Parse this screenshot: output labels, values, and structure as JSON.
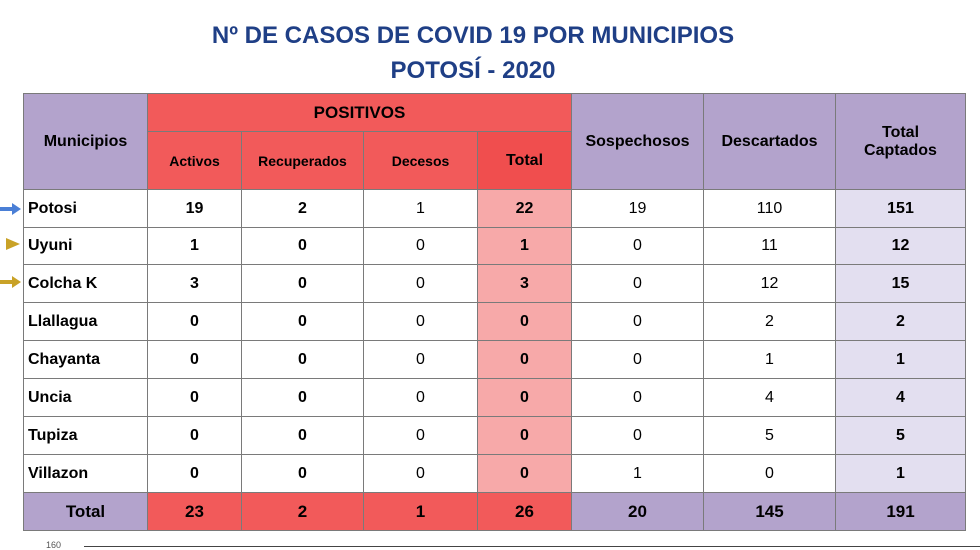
{
  "title": {
    "line1": "Nº DE CASOS  DE  COVID 19  POR MUNICIPIOS",
    "line2": "POTOSÍ - 2020"
  },
  "headers": {
    "municipios": "Municipios",
    "positivos": "POSITIVOS",
    "activos": "Activos",
    "recuperados": "Recuperados",
    "decesos": "Decesos",
    "total": "Total",
    "sospechosos": "Sospechosos",
    "descartados": "Descartados",
    "total_captados": "Total Captados"
  },
  "rows": [
    {
      "municipio": "Potosi",
      "activos": "19",
      "recuperados": "2",
      "decesos": "1",
      "total": "22",
      "sospechosos": "19",
      "descartados": "110",
      "captados": "151"
    },
    {
      "municipio": "Uyuni",
      "activos": "1",
      "recuperados": "0",
      "decesos": "0",
      "total": "1",
      "sospechosos": "0",
      "descartados": "11",
      "captados": "12"
    },
    {
      "municipio": "Colcha K",
      "activos": "3",
      "recuperados": "0",
      "decesos": "0",
      "total": "3",
      "sospechosos": "0",
      "descartados": "12",
      "captados": "15"
    },
    {
      "municipio": "Llallagua",
      "activos": "0",
      "recuperados": "0",
      "decesos": "0",
      "total": "0",
      "sospechosos": "0",
      "descartados": "2",
      "captados": "2"
    },
    {
      "municipio": "Chayanta",
      "activos": "0",
      "recuperados": "0",
      "decesos": "0",
      "total": "0",
      "sospechosos": "0",
      "descartados": "1",
      "captados": "1"
    },
    {
      "municipio": "Uncia",
      "activos": "0",
      "recuperados": "0",
      "decesos": "0",
      "total": "0",
      "sospechosos": "0",
      "descartados": "4",
      "captados": "4"
    },
    {
      "municipio": "Tupiza",
      "activos": "0",
      "recuperados": "0",
      "decesos": "0",
      "total": "0",
      "sospechosos": "0",
      "descartados": "5",
      "captados": "5"
    },
    {
      "municipio": "Villazon",
      "activos": "0",
      "recuperados": "0",
      "decesos": "0",
      "total": "0",
      "sospechosos": "1",
      "descartados": "0",
      "captados": "1"
    }
  ],
  "totals": {
    "label": "Total",
    "activos": "23",
    "recuperados": "2",
    "decesos": "1",
    "total": "26",
    "sospechosos": "20",
    "descartados": "145",
    "captados": "191"
  },
  "markers": [
    {
      "row": "Potosi",
      "icon": "arrow-right-icon",
      "color": "#4a7fd6"
    },
    {
      "row": "Uyuni",
      "icon": "triangle-right-icon",
      "color": "#c9a227"
    },
    {
      "row": "Colcha K",
      "icon": "arrow-right-icon",
      "color": "#c9a227"
    }
  ],
  "chart_fragment": {
    "tick_label": "160"
  },
  "colors": {
    "title": "#1f3f86",
    "header_purple": "#b3a3cc",
    "header_red": "#f25a5a",
    "total_column": "#f7a9a9",
    "captados_column": "#e3dff0"
  }
}
